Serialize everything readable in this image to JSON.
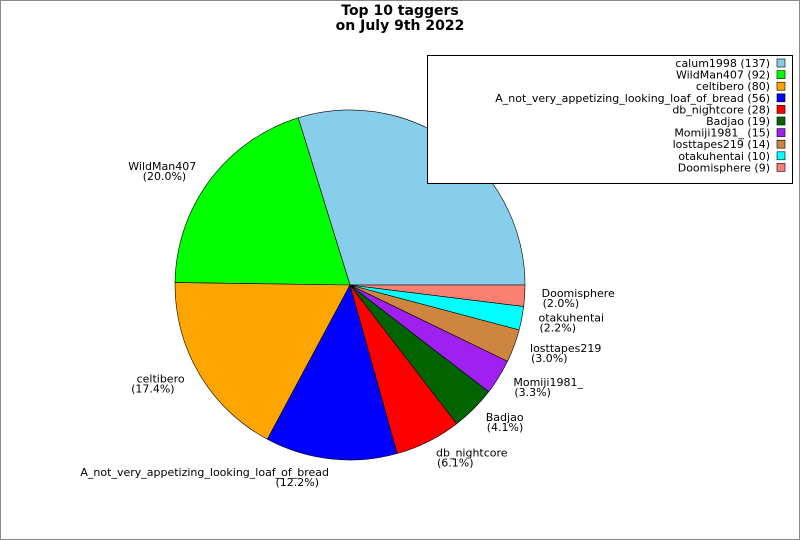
{
  "chart_data": {
    "type": "pie",
    "title_lines": [
      "Top 10 taggers",
      "on July 9th 2022"
    ],
    "categories": [
      "calum1998",
      "WildMan407",
      "celtibero",
      "A_not_very_appetizing_looking_loaf_of_bread",
      "db_nightcore",
      "Badjao",
      "Momiji1981_",
      "losttapes219",
      "otakuhentai",
      "Doomisphere"
    ],
    "values": [
      137,
      92,
      80,
      56,
      28,
      19,
      15,
      14,
      10,
      9
    ],
    "percent_labels": [
      null,
      "(20.0%)",
      "(17.4%)",
      "(12.2%)",
      "(6.1%)",
      "(4.1%)",
      "(3.3%)",
      "(3.0%)",
      "(2.2%)",
      "(2.0%)"
    ],
    "legend_labels": [
      "calum1998 (137)",
      "WildMan407 (92)",
      "celtibero (80)",
      "A_not_very_appetizing_looking_loaf_of_bread (56)",
      "db_nightcore (28)",
      "Badjao (19)",
      "Momiji1981_ (15)",
      "losttapes219 (14)",
      "otakuhentai (10)",
      "Doomisphere (9)"
    ],
    "colors": [
      "#87ceeb",
      "#00ff00",
      "#ffa500",
      "#0000ff",
      "#ff0000",
      "#006400",
      "#a020f0",
      "#cd853f",
      "#00ffff",
      "#fa8072"
    ],
    "legend": "top-right"
  }
}
